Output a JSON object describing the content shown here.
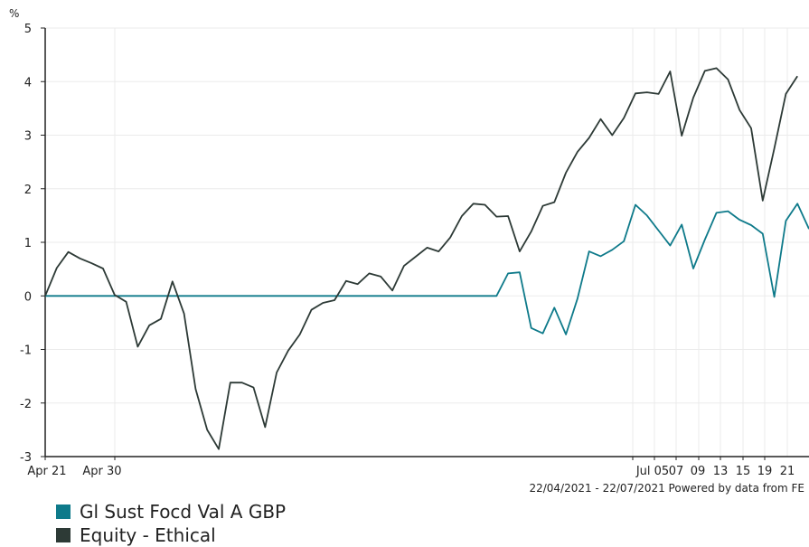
{
  "chart_data": {
    "type": "line",
    "y_unit_label": "%",
    "ylim": [
      -3,
      5
    ],
    "y_ticks": [
      "5",
      "4",
      "3",
      "2",
      "1",
      "0",
      "-1",
      "-2",
      "-3"
    ],
    "grid": true,
    "x_tick_labels": [
      "Apr 21",
      "Apr 30",
      "Jul 05",
      "07",
      "09",
      "13",
      "15",
      "19",
      "21"
    ],
    "footer": "22/04/2021 - 22/07/2021 Powered by data from FE",
    "series": [
      {
        "name": "Gl Sust Focd Val A GBP",
        "color": "#0e7a8a",
        "values": [
          0,
          0,
          0,
          0,
          0,
          0,
          0,
          0,
          0,
          0,
          0,
          0,
          0,
          0,
          0,
          0,
          0,
          0,
          0,
          0,
          0,
          0,
          0,
          0,
          0,
          0,
          0,
          0,
          0,
          0,
          0,
          0,
          0,
          0,
          0,
          0,
          0,
          0,
          0,
          0,
          0.42,
          0.44,
          -0.6,
          -0.7,
          -0.22,
          -0.72,
          -0.05,
          0.83,
          0.74,
          0.86,
          1.02,
          1.7,
          1.5,
          1.22,
          0.94,
          1.33,
          0.51,
          1.05,
          1.55,
          1.58,
          1.42,
          1.32,
          1.16,
          -0.02,
          1.4,
          1.72,
          1.25
        ]
      },
      {
        "name": "Equity - Ethical",
        "color": "#2d3a36",
        "values": [
          0,
          0.52,
          0.82,
          0.7,
          0.61,
          0.51,
          0.02,
          -0.11,
          -0.95,
          -0.55,
          -0.43,
          0.27,
          -0.33,
          -1.74,
          -2.5,
          -2.86,
          -1.62,
          -1.62,
          -1.71,
          -2.45,
          -1.43,
          -1.02,
          -0.72,
          -0.26,
          -0.13,
          -0.08,
          0.28,
          0.22,
          0.42,
          0.36,
          0.1,
          0.56,
          0.73,
          0.9,
          0.83,
          1.09,
          1.49,
          1.72,
          1.7,
          1.48,
          1.49,
          0.83,
          1.2,
          1.68,
          1.75,
          2.3,
          2.69,
          2.95,
          3.3,
          3.0,
          3.32,
          3.78,
          3.8,
          3.77,
          4.19,
          2.99,
          3.7,
          4.2,
          4.25,
          4.04,
          3.47,
          3.13,
          1.78,
          2.75,
          3.77,
          4.1
        ]
      }
    ]
  }
}
